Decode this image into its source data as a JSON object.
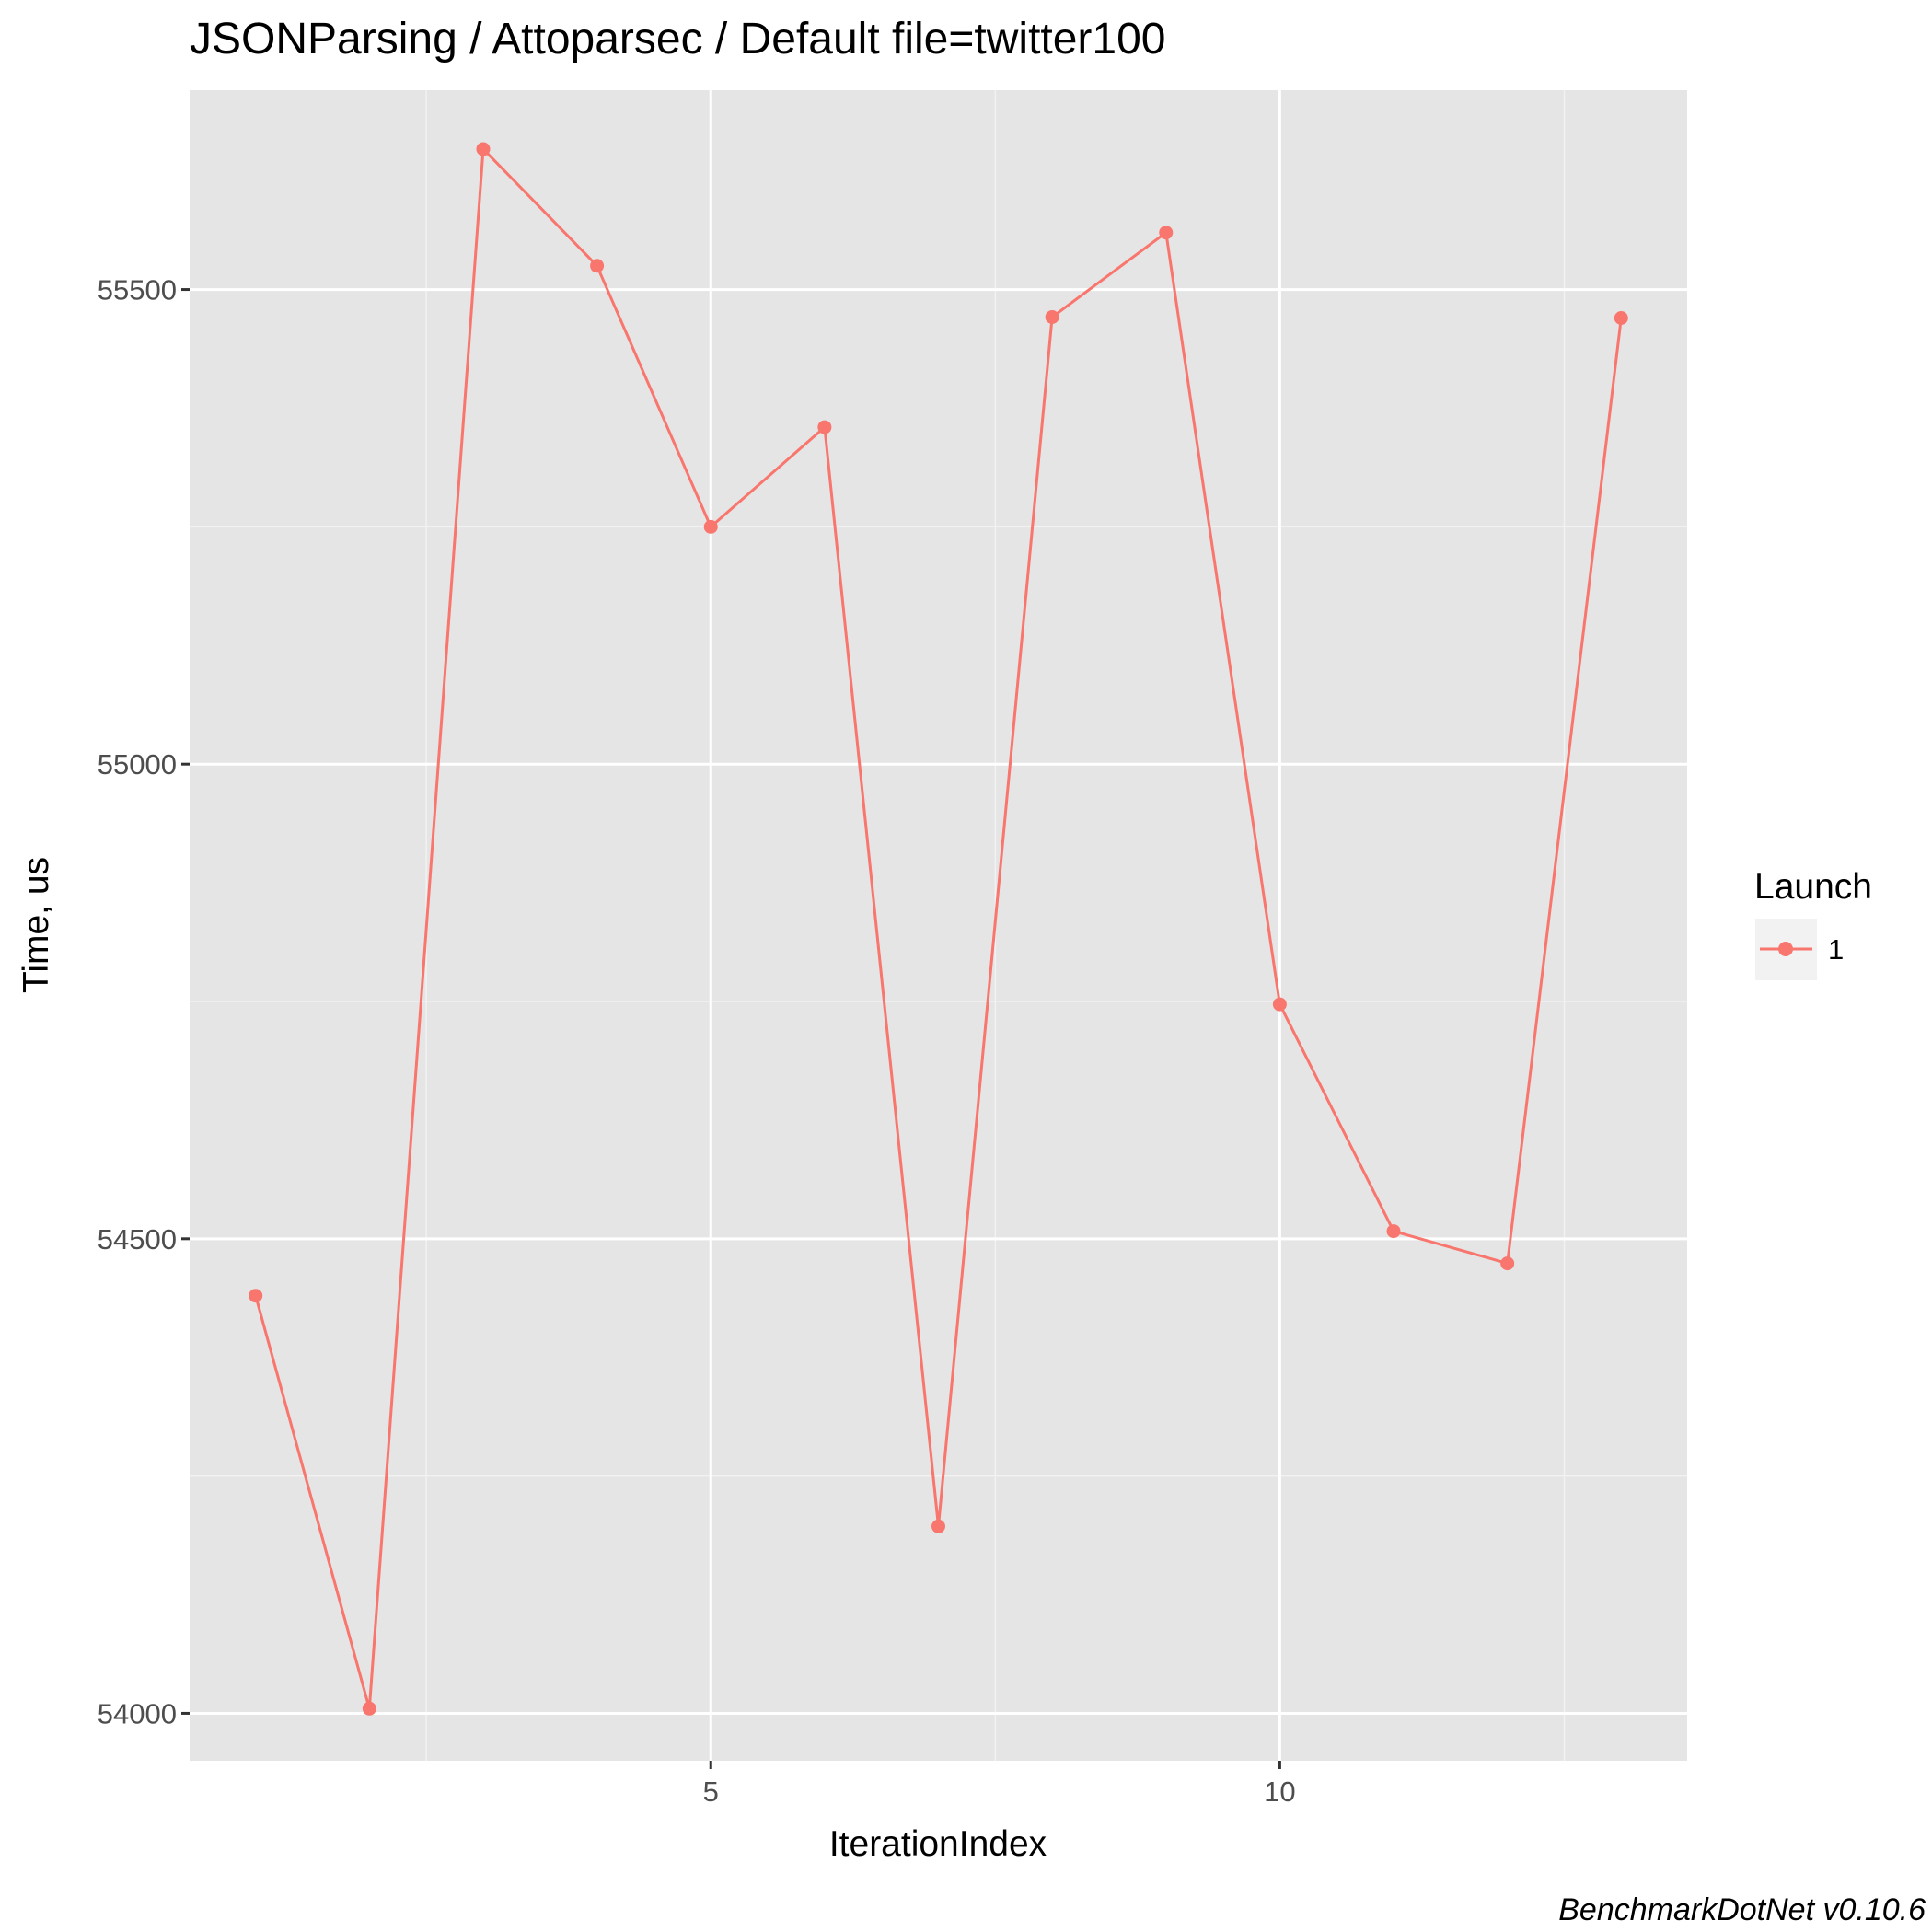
{
  "chart_data": {
    "type": "line",
    "title": "JSONParsing / Attoparsec / Default file=twitter100",
    "xlabel": "IterationIndex",
    "ylabel": "Time, us",
    "x": [
      1,
      2,
      3,
      4,
      5,
      6,
      7,
      8,
      9,
      10,
      11,
      12,
      13
    ],
    "series": [
      {
        "name": "1",
        "color": "#f8766d",
        "values": [
          54440,
          54005,
          55648,
          55525,
          55250,
          55355,
          54197,
          55471,
          55560,
          54747,
          54508,
          54474,
          55470
        ]
      }
    ],
    "xlim": [
      0.42,
      13.58
    ],
    "ylim": [
      53950,
      55710
    ],
    "x_ticks": [
      5,
      10
    ],
    "x_tick_labels": [
      "5",
      "10"
    ],
    "x_minor_ticks": [
      2.5,
      7.5,
      12.5
    ],
    "y_ticks": [
      54000,
      54500,
      55000,
      55500
    ],
    "y_tick_labels": [
      "54000",
      "54500",
      "55000",
      "55500"
    ],
    "y_minor_ticks": [
      54250,
      54750,
      55250
    ],
    "grid": true,
    "panel_background": "#e5e5e5",
    "legend": {
      "title": "Launch",
      "placement": "right",
      "entries": [
        "1"
      ]
    },
    "caption": "BenchmarkDotNet v0.10.6"
  }
}
